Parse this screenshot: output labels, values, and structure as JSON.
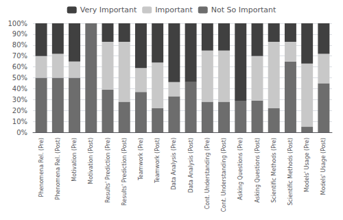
{
  "chart_data": {
    "type": "bar",
    "stacked": true,
    "categories": [
      "Phenomena Rel. (Pre)",
      "Phenomena Rel. (Post)",
      "Motivation (Pre)",
      "Motivation (Post)",
      "Results' Prediction (Pre)",
      "Results' Prediction (Post)",
      "Teamwork (Pre)",
      "Teamwork (Post)",
      "Data Analysis (Pre)",
      "Data Analysis (Post)",
      "Cont. Understanding (Pre)",
      "Cont. Understanding (Post)",
      "Asking Questions (Pre)",
      "Asking Questions (Post)",
      "Scientific Methods (Pre)",
      "Scientific Methods (Post)",
      "Models' Usage (Pre)",
      "Models' Usage (Post)"
    ],
    "series": [
      {
        "name": "Not So Important",
        "color": "#6d6d6d",
        "values": [
          50,
          50,
          50,
          100,
          39,
          28,
          37,
          22,
          33,
          46,
          28,
          28,
          29,
          29,
          22,
          65,
          5,
          45
        ]
      },
      {
        "name": "Important",
        "color": "#c8c8c8",
        "values": [
          20,
          22,
          15,
          0,
          44,
          55,
          22,
          42,
          13,
          0,
          47,
          47,
          0,
          41,
          61,
          18,
          58,
          27
        ]
      },
      {
        "name": "Very Important",
        "color": "#404040",
        "values": [
          30,
          28,
          35,
          0,
          17,
          17,
          41,
          36,
          54,
          54,
          25,
          25,
          71,
          30,
          17,
          17,
          37,
          28
        ]
      }
    ],
    "ylim": [
      0,
      100
    ],
    "yticks": [
      {
        "value": 0,
        "label": "0%"
      },
      {
        "value": 10,
        "label": "10%"
      },
      {
        "value": 20,
        "label": "20%"
      },
      {
        "value": 30,
        "label": "30%"
      },
      {
        "value": 40,
        "label": "40%"
      },
      {
        "value": 50,
        "label": "50%"
      },
      {
        "value": 60,
        "label": "60%"
      },
      {
        "value": 70,
        "label": "70%"
      },
      {
        "value": 80,
        "label": "80%"
      },
      {
        "value": 90,
        "label": "90%"
      },
      {
        "value": 100,
        "label": "100%"
      }
    ],
    "grid": true,
    "legend": "top"
  }
}
